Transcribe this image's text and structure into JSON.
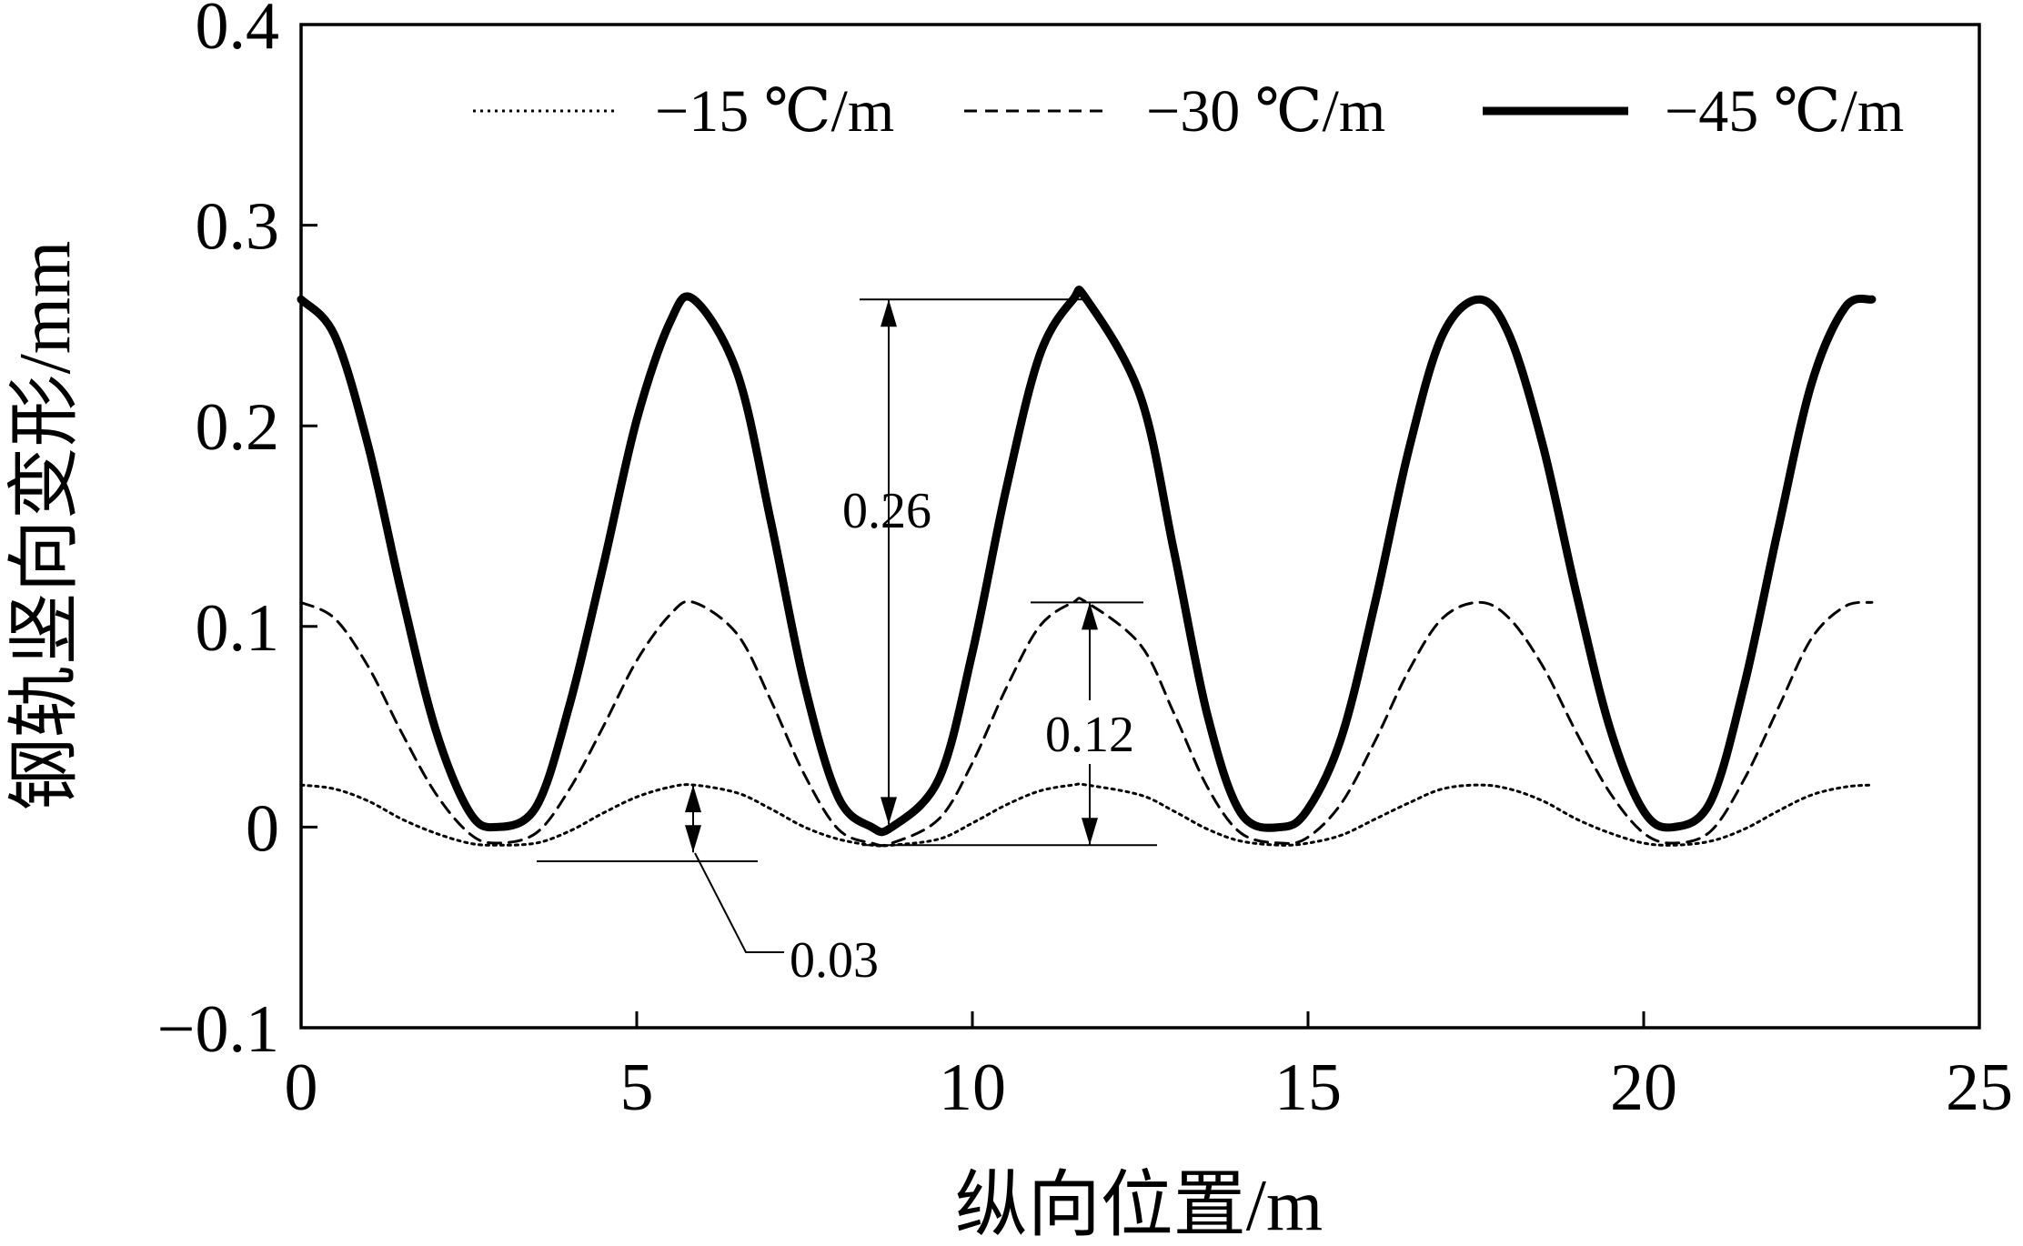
{
  "chart_data": {
    "type": "line",
    "xlabel": "纵向位置/m",
    "ylabel": "钢轨竖向变形/mm",
    "xlim": [
      0,
      25
    ],
    "ylim": [
      -0.1,
      0.4
    ],
    "xticks": [
      0,
      5,
      10,
      15,
      20,
      25
    ],
    "xtick_labels": [
      "0",
      "5",
      "10",
      "15",
      "20",
      "25"
    ],
    "yticks": [
      -0.1,
      0,
      0.1,
      0.2,
      0.3,
      0.4
    ],
    "ytick_labels": [
      "−0.1",
      "0",
      "0.1",
      "0.2",
      "0.3",
      "0.4"
    ],
    "grid": false,
    "legend_position": "top",
    "series": [
      {
        "name": "−15 ℃/m",
        "style": "dotted",
        "color": "#000000",
        "x": [
          0,
          0.5,
          1.0,
          1.5,
          2.0,
          2.5,
          2.9,
          3.5,
          4.0,
          4.5,
          5.0,
          5.5,
          5.85,
          6.5,
          7.0,
          7.5,
          8.0,
          8.5,
          8.8,
          9.5,
          10.0,
          10.5,
          11.0,
          11.5,
          11.7,
          12.5,
          13.0,
          13.5,
          14.0,
          14.6,
          15.0,
          15.5,
          16.0,
          16.5,
          17.0,
          17.55,
          18.0,
          18.5,
          19.0,
          19.5,
          20.0,
          20.45,
          21.0,
          21.5,
          22.0,
          22.5,
          23.0,
          23.4
        ],
        "y": [
          0.021,
          0.019,
          0.013,
          0.004,
          -0.003,
          -0.008,
          -0.009,
          -0.008,
          -0.002,
          0.007,
          0.015,
          0.02,
          0.021,
          0.017,
          0.009,
          0.0,
          -0.006,
          -0.009,
          -0.009,
          -0.006,
          0.002,
          0.011,
          0.018,
          0.021,
          0.021,
          0.016,
          0.008,
          -0.001,
          -0.007,
          -0.009,
          -0.008,
          -0.004,
          0.004,
          0.012,
          0.019,
          0.021,
          0.019,
          0.013,
          0.004,
          -0.003,
          -0.008,
          -0.009,
          -0.007,
          -0.001,
          0.008,
          0.016,
          0.02,
          0.021
        ]
      },
      {
        "name": "−30 ℃/m",
        "style": "dashed",
        "color": "#000000",
        "x": [
          0,
          0.5,
          1.0,
          1.5,
          2.0,
          2.5,
          2.9,
          3.5,
          4.0,
          4.5,
          5.0,
          5.5,
          5.85,
          6.5,
          7.0,
          7.5,
          8.0,
          8.5,
          8.8,
          9.5,
          10.0,
          10.5,
          11.0,
          11.5,
          11.7,
          12.5,
          13.0,
          13.5,
          14.0,
          14.6,
          15.0,
          15.5,
          16.0,
          16.5,
          17.0,
          17.55,
          18.0,
          18.5,
          19.0,
          19.5,
          20.0,
          20.45,
          21.0,
          21.5,
          22.0,
          22.5,
          23.0,
          23.4
        ],
        "y": [
          0.112,
          0.104,
          0.08,
          0.047,
          0.017,
          -0.003,
          -0.008,
          -0.003,
          0.019,
          0.05,
          0.083,
          0.106,
          0.112,
          0.096,
          0.063,
          0.026,
          -0.001,
          -0.008,
          -0.008,
          0.004,
          0.032,
          0.069,
          0.1,
          0.112,
          0.112,
          0.091,
          0.057,
          0.02,
          -0.003,
          -0.008,
          -0.005,
          0.012,
          0.043,
          0.078,
          0.104,
          0.112,
          0.104,
          0.08,
          0.047,
          0.017,
          -0.003,
          -0.008,
          -0.002,
          0.024,
          0.059,
          0.094,
          0.11,
          0.112
        ]
      },
      {
        "name": "−45 ℃/m",
        "style": "solid",
        "color": "#000000",
        "x": [
          0,
          0.5,
          1.0,
          1.5,
          2.0,
          2.5,
          2.9,
          3.5,
          4.0,
          4.5,
          5.0,
          5.5,
          5.85,
          6.5,
          7.0,
          7.5,
          8.0,
          8.5,
          8.8,
          9.5,
          10.0,
          10.5,
          11.0,
          11.5,
          11.7,
          12.5,
          13.0,
          13.5,
          14.0,
          14.6,
          15.0,
          15.5,
          16.0,
          16.5,
          17.0,
          17.55,
          18.0,
          18.5,
          19.0,
          19.5,
          20.0,
          20.45,
          21.0,
          21.5,
          22.0,
          22.5,
          23.0,
          23.4
        ],
        "y": [
          0.263,
          0.245,
          0.19,
          0.116,
          0.049,
          0.008,
          0.0,
          0.01,
          0.061,
          0.13,
          0.203,
          0.252,
          0.263,
          0.226,
          0.152,
          0.071,
          0.015,
          0.0,
          0.0,
          0.024,
          0.087,
          0.168,
          0.235,
          0.263,
          0.263,
          0.215,
          0.138,
          0.056,
          0.007,
          0.0,
          0.009,
          0.045,
          0.112,
          0.188,
          0.245,
          0.263,
          0.245,
          0.19,
          0.116,
          0.049,
          0.008,
          0.0,
          0.013,
          0.071,
          0.148,
          0.221,
          0.259,
          0.263
        ]
      }
    ],
    "annotations": [
      {
        "label": "0.26",
        "x": 8.8,
        "y_from": 0.0,
        "y_to": 0.263
      },
      {
        "label": "0.12",
        "x": 11.7,
        "y_from": -0.009,
        "y_to": 0.112
      },
      {
        "label": "0.03",
        "x": 5.85,
        "y_from": -0.009,
        "y_to": 0.021
      }
    ]
  }
}
